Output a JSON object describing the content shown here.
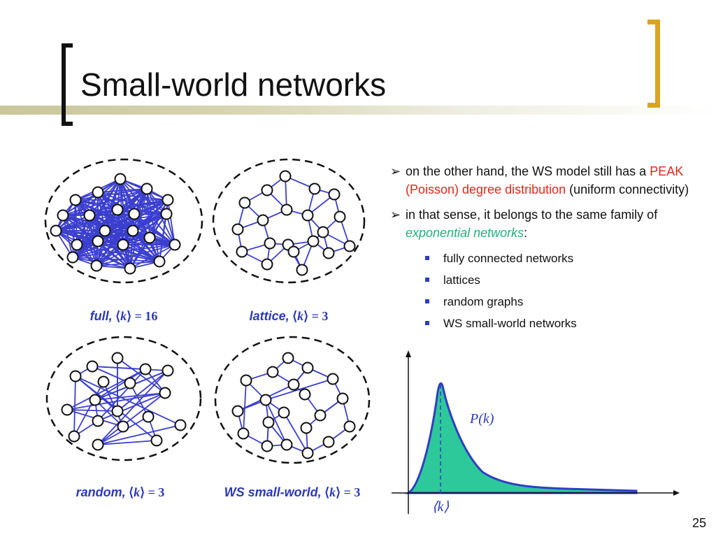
{
  "slide": {
    "title": "Small-world networks",
    "page_number": "25"
  },
  "graphs": [
    {
      "label_prefix": "full,",
      "k": "16"
    },
    {
      "label_prefix": "lattice,",
      "k": "3"
    },
    {
      "label_prefix": "random,",
      "k": "3"
    },
    {
      "label_prefix": "WS small-world,",
      "k": "3"
    }
  ],
  "bullets": {
    "p1": {
      "a": "on the other hand, the WS model still has a ",
      "b": "PEAK (Poisson) degree distribution",
      "c": " (uniform connectivity)"
    },
    "p2": {
      "a": "in that sense, it belongs to the same family of ",
      "b": "exponential networks",
      "c": ":"
    },
    "items": [
      "fully connected networks",
      "lattices",
      "random graphs",
      "WS small-world networks"
    ]
  },
  "distribution_plot": {
    "curve_label": "P(k)",
    "axis_label": "⟨k⟩",
    "colors": {
      "fill": "#2ec99a",
      "stroke": "#2f3ec4"
    }
  },
  "colors": {
    "edge": "#3b3fcf",
    "accent": "#d9a520",
    "red": "#e0261c",
    "green": "#22b07a"
  }
}
